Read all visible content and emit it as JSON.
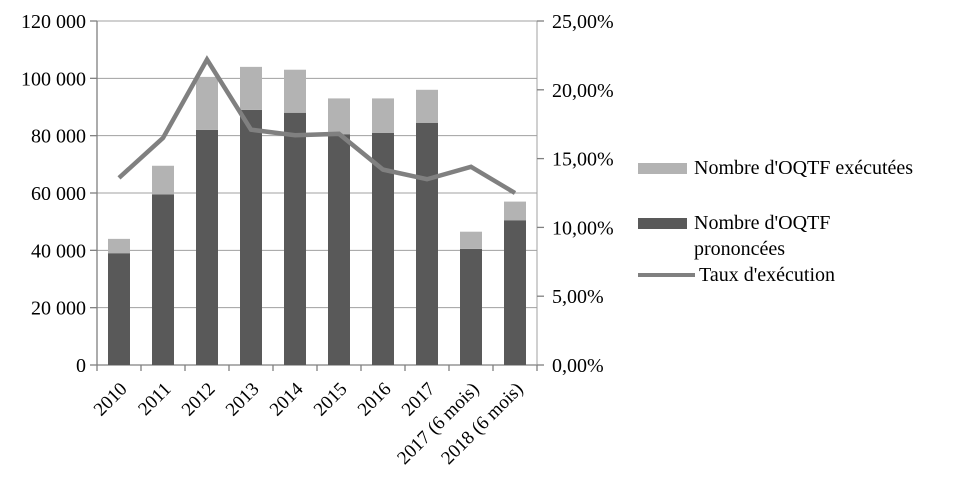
{
  "chart_data": {
    "type": "bar",
    "variant": "stacked-columns-with-line-overlay",
    "title": "",
    "categories": [
      "2010",
      "2011",
      "2012",
      "2013",
      "2014",
      "2015",
      "2016",
      "2017",
      "2017 (6 mois)",
      "2018 (6 mois)"
    ],
    "series": [
      {
        "name": "Nombre d'OQTF prononcées",
        "type": "column",
        "stack_order": 0,
        "color": "#595959",
        "values": [
          39000,
          59500,
          82000,
          89000,
          88000,
          80500,
          81000,
          84500,
          40500,
          50500
        ]
      },
      {
        "name": "Nombre d'OQTF exécutées",
        "type": "column",
        "stack_order": 1,
        "color": "#b3b3b3",
        "values": [
          5000,
          10000,
          18500,
          15000,
          15000,
          12500,
          12000,
          11500,
          6000,
          6500
        ]
      },
      {
        "name": "Taux d'exécution",
        "type": "line",
        "axis": "right",
        "color": "#808080",
        "values_percent": [
          13.6,
          16.5,
          22.2,
          17.1,
          16.7,
          16.8,
          14.2,
          13.5,
          14.4,
          12.5
        ]
      }
    ],
    "left_axis": {
      "min": 0,
      "max": 120000,
      "step": 20000,
      "tick_labels": [
        "120 000",
        "100 000",
        "80 000",
        "60 000",
        "40 000",
        "20 000",
        "0"
      ]
    },
    "right_axis": {
      "min": 0,
      "max": 25,
      "step": 5,
      "tick_labels": [
        "25,00%",
        "20,00%",
        "15,00%",
        "10,00%",
        "5,00%",
        "0,00%"
      ]
    },
    "grid": true,
    "legend_position": "right-middle"
  },
  "legend": {
    "items": [
      {
        "label": "Nombre d'OQTF exécutées",
        "swatch": "light-gray-rect"
      },
      {
        "label": "Nombre d'OQTF prononcées",
        "swatch": "dark-gray-rect"
      },
      {
        "label": "Taux d'exécution",
        "swatch": "gray-line"
      }
    ]
  },
  "colors": {
    "bar_dark": "#595959",
    "bar_light": "#b3b3b3",
    "line": "#808080",
    "gridline": "#a0a0a0",
    "axis": "#808080",
    "text": "#000000",
    "background": "#ffffff"
  }
}
